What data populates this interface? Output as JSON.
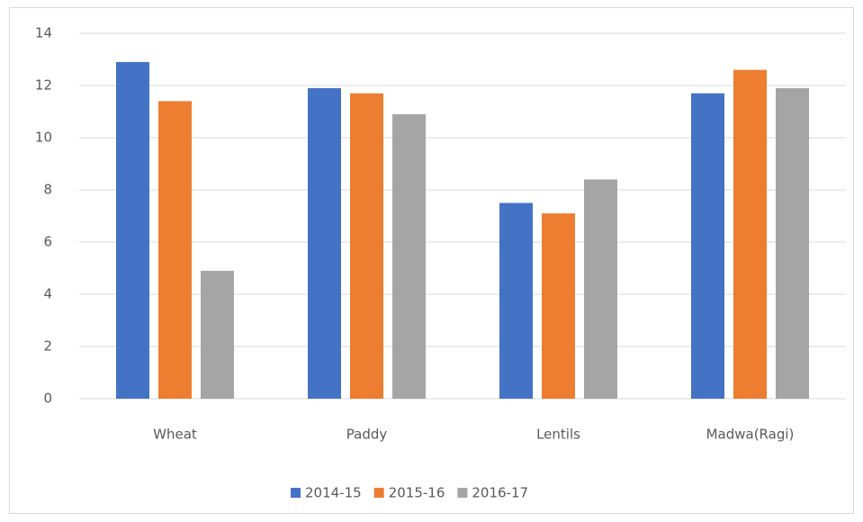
{
  "chart_data": {
    "type": "bar",
    "categories": [
      "Wheat",
      "Paddy",
      "Lentils",
      "Madwa(Ragi)"
    ],
    "series": [
      {
        "name": "2014-15",
        "color": "#4472c4",
        "values": [
          12.9,
          11.9,
          7.5,
          11.7
        ]
      },
      {
        "name": "2015-16",
        "color": "#ed7d31",
        "values": [
          11.4,
          11.7,
          7.1,
          12.6
        ]
      },
      {
        "name": "2016-17",
        "color": "#a5a5a5",
        "values": [
          4.9,
          10.9,
          8.4,
          11.9
        ]
      }
    ],
    "ylim": [
      0,
      14
    ],
    "yticks": [
      0,
      2,
      4,
      6,
      8,
      10,
      12,
      14
    ],
    "grid": true,
    "legend": "bottom"
  }
}
